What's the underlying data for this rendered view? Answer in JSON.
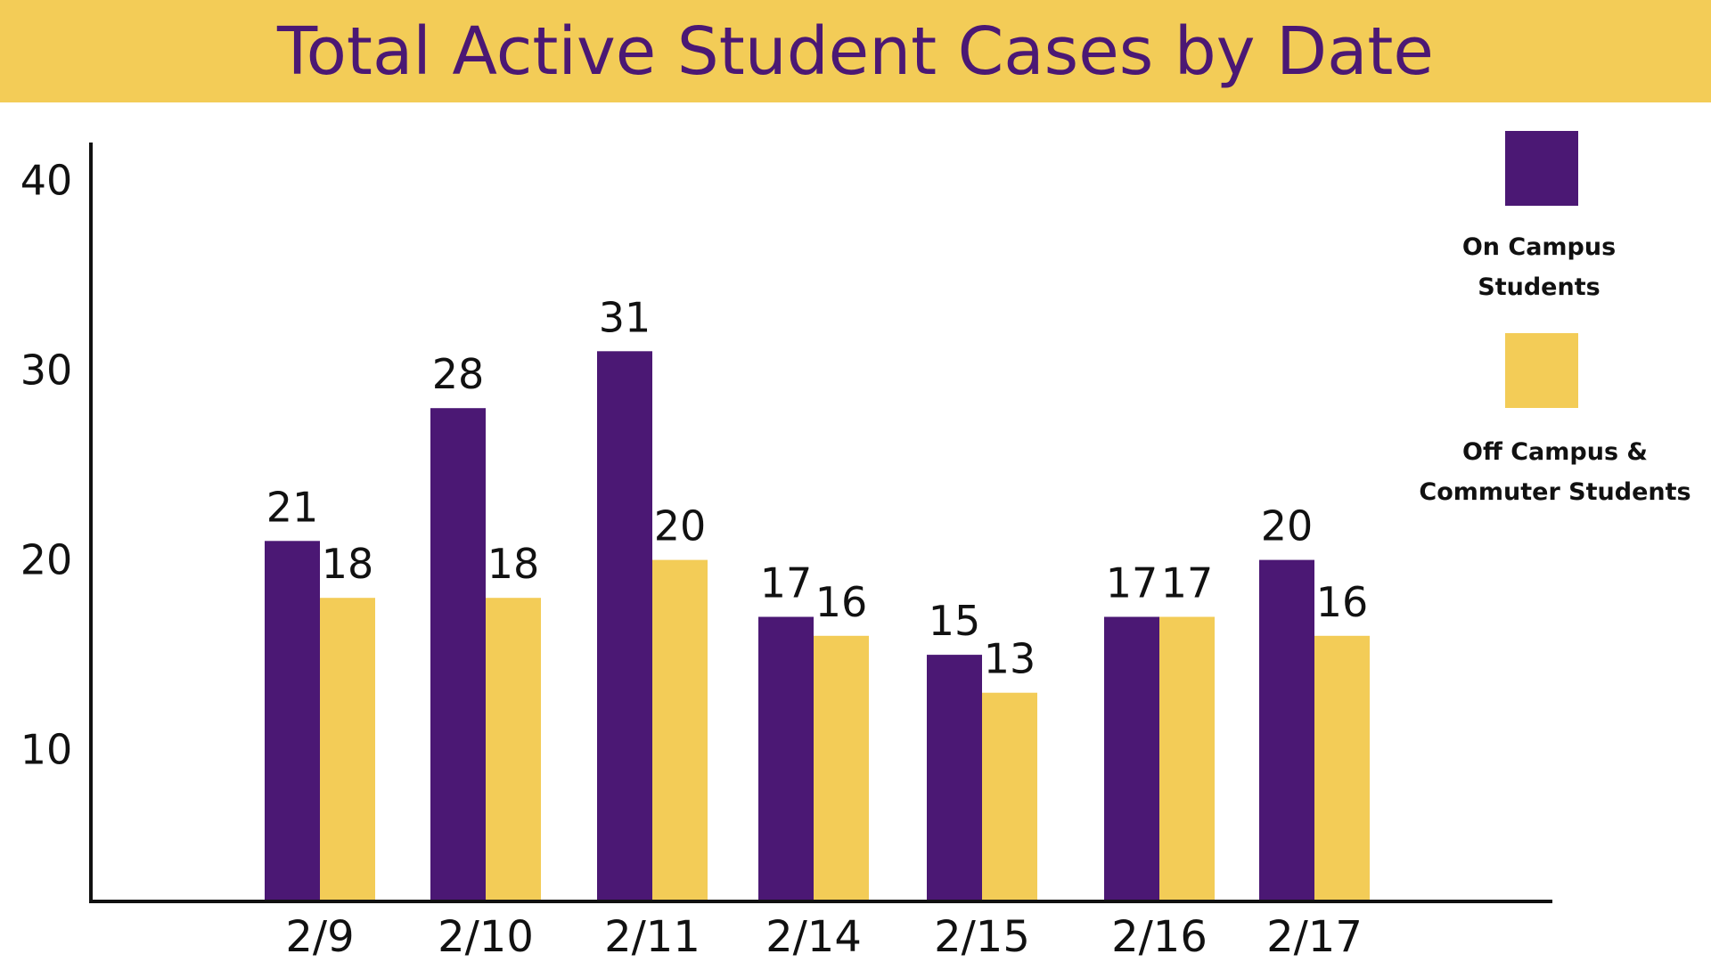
{
  "chart_data": {
    "type": "bar",
    "title": "Total Active Student Cases by Date",
    "xlabel": "",
    "ylabel": "",
    "categories": [
      "2/9",
      "2/10",
      "2/11",
      "2/14",
      "2/15",
      "2/16",
      "2/17"
    ],
    "series": [
      {
        "name": "On Campus Students",
        "legend_lines": [
          "On Campus",
          "Students"
        ],
        "color": "#4B1874",
        "values": [
          21,
          28,
          31,
          17,
          15,
          17,
          20
        ]
      },
      {
        "name": "Off Campus & Commuter Students",
        "legend_lines": [
          "Off Campus &",
          "Commuter Students"
        ],
        "color": "#F3CC57",
        "values": [
          18,
          18,
          20,
          16,
          13,
          17,
          16
        ]
      }
    ],
    "yticks": [
      10,
      20,
      30,
      40
    ],
    "ylim": [
      2,
      42
    ],
    "grid": false,
    "legend_position": "right"
  }
}
